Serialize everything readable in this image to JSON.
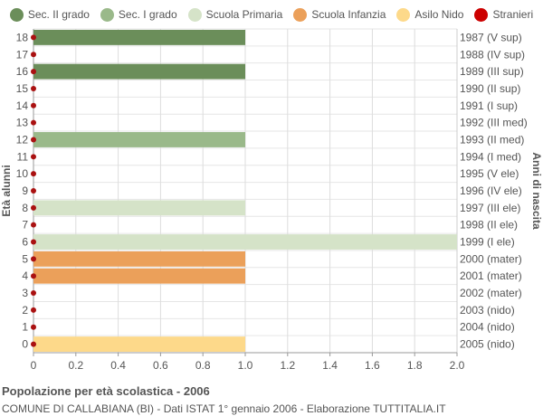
{
  "chart_data": {
    "type": "bar",
    "orientation": "horizontal",
    "title": "Popolazione per età scolastica - 2006",
    "subtitle": "COMUNE DI CALLABIANA (BI) - Dati ISTAT 1° gennaio 2006 - Elaborazione TUTTITALIA.IT",
    "ylabel": "Età alunni",
    "ylabel_right": "Anni di nascita",
    "xlim": [
      0,
      2.0
    ],
    "x_ticks": [
      "0",
      "0.2",
      "0.4",
      "0.6",
      "0.8",
      "1.0",
      "1.2",
      "1.4",
      "1.6",
      "1.8",
      "2.0"
    ],
    "grid": true,
    "legend_placement": "top",
    "legend": [
      {
        "name": "Sec. II grado",
        "color": "#6b8e5a"
      },
      {
        "name": "Sec. I grado",
        "color": "#9ab98a"
      },
      {
        "name": "Scuola Primaria",
        "color": "#d5e3c8"
      },
      {
        "name": "Scuola Infanzia",
        "color": "#eba05a"
      },
      {
        "name": "Asilo Nido",
        "color": "#fdd98a"
      },
      {
        "name": "Stranieri",
        "color": "#cc0000"
      }
    ],
    "rows": [
      {
        "age": "18",
        "birth": "1987 (V sup)",
        "value": 1,
        "group": "Sec. II grado",
        "stranieri": 0
      },
      {
        "age": "17",
        "birth": "1988 (IV sup)",
        "value": 0,
        "group": "Sec. II grado",
        "stranieri": 0
      },
      {
        "age": "16",
        "birth": "1989 (III sup)",
        "value": 1,
        "group": "Sec. II grado",
        "stranieri": 0
      },
      {
        "age": "15",
        "birth": "1990 (II sup)",
        "value": 0,
        "group": "Sec. II grado",
        "stranieri": 0
      },
      {
        "age": "14",
        "birth": "1991 (I sup)",
        "value": 0,
        "group": "Sec. II grado",
        "stranieri": 0
      },
      {
        "age": "13",
        "birth": "1992 (III med)",
        "value": 0,
        "group": "Sec. I grado",
        "stranieri": 0
      },
      {
        "age": "12",
        "birth": "1993 (II med)",
        "value": 1,
        "group": "Sec. I grado",
        "stranieri": 0
      },
      {
        "age": "11",
        "birth": "1994 (I med)",
        "value": 0,
        "group": "Sec. I grado",
        "stranieri": 0
      },
      {
        "age": "10",
        "birth": "1995 (V ele)",
        "value": 0,
        "group": "Scuola Primaria",
        "stranieri": 0
      },
      {
        "age": "9",
        "birth": "1996 (IV ele)",
        "value": 0,
        "group": "Scuola Primaria",
        "stranieri": 0
      },
      {
        "age": "8",
        "birth": "1997 (III ele)",
        "value": 1,
        "group": "Scuola Primaria",
        "stranieri": 0
      },
      {
        "age": "7",
        "birth": "1998 (II ele)",
        "value": 0,
        "group": "Scuola Primaria",
        "stranieri": 0
      },
      {
        "age": "6",
        "birth": "1999 (I ele)",
        "value": 2,
        "group": "Scuola Primaria",
        "stranieri": 0
      },
      {
        "age": "5",
        "birth": "2000 (mater)",
        "value": 1,
        "group": "Scuola Infanzia",
        "stranieri": 0
      },
      {
        "age": "4",
        "birth": "2001 (mater)",
        "value": 1,
        "group": "Scuola Infanzia",
        "stranieri": 0
      },
      {
        "age": "3",
        "birth": "2002 (mater)",
        "value": 0,
        "group": "Scuola Infanzia",
        "stranieri": 0
      },
      {
        "age": "2",
        "birth": "2003 (nido)",
        "value": 0,
        "group": "Asilo Nido",
        "stranieri": 0
      },
      {
        "age": "1",
        "birth": "2004 (nido)",
        "value": 0,
        "group": "Asilo Nido",
        "stranieri": 0
      },
      {
        "age": "0",
        "birth": "2005 (nido)",
        "value": 1,
        "group": "Asilo Nido",
        "stranieri": 0
      }
    ]
  }
}
